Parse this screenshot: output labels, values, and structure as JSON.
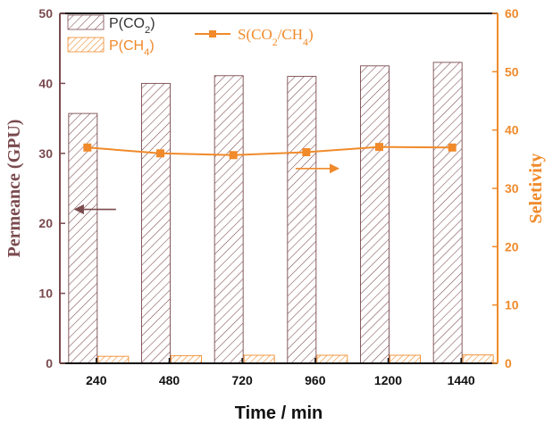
{
  "colors": {
    "co2": "#7a4a4e",
    "ch4": "#f08a2a",
    "selectivity": "#f08a2a",
    "axis_left": "#7a4a4e",
    "axis_right": "#f08a2a",
    "arrow_left": "#7a4a4e",
    "arrow_right": "#f08a2a"
  },
  "chart_data": {
    "type": "bar",
    "categories": [
      "240",
      "480",
      "720",
      "960",
      "1200",
      "1440"
    ],
    "series": [
      {
        "name": "P(CO2)",
        "axis": "left",
        "kind": "bar",
        "pattern": "hatched",
        "values": [
          35.7,
          40.0,
          41.1,
          41.0,
          42.5,
          43.0
        ]
      },
      {
        "name": "P(CH4)",
        "axis": "left",
        "kind": "bar",
        "pattern": "hatched",
        "values": [
          1.0,
          1.1,
          1.15,
          1.15,
          1.15,
          1.2
        ]
      },
      {
        "name": "S(CO2/CH4)",
        "axis": "right",
        "kind": "line",
        "marker": "square",
        "values": [
          37.0,
          36.0,
          35.7,
          36.2,
          37.1,
          37.0
        ]
      }
    ],
    "xlabel": "Time / min",
    "ylabel": "Permeance (GPU)",
    "y2label": "Seletivity",
    "ylim": [
      0,
      50
    ],
    "y2lim": [
      0,
      60
    ],
    "yticks": [
      0,
      10,
      20,
      30,
      40,
      50
    ],
    "y2ticks": [
      0,
      10,
      20,
      30,
      40,
      50,
      60
    ],
    "grid": false,
    "legend": {
      "placement": "top-left",
      "entries": [
        "P(CO2)",
        "P(CH4)",
        "S(CO2/CH4)"
      ]
    },
    "annotations": [
      {
        "type": "arrow",
        "direction": "left",
        "points_to": "left axis",
        "anchor_x_category": "240",
        "y_value": 22
      },
      {
        "type": "arrow",
        "direction": "right",
        "points_to": "right axis",
        "anchor_x_category": "960",
        "y2_value": 33.4
      }
    ]
  }
}
